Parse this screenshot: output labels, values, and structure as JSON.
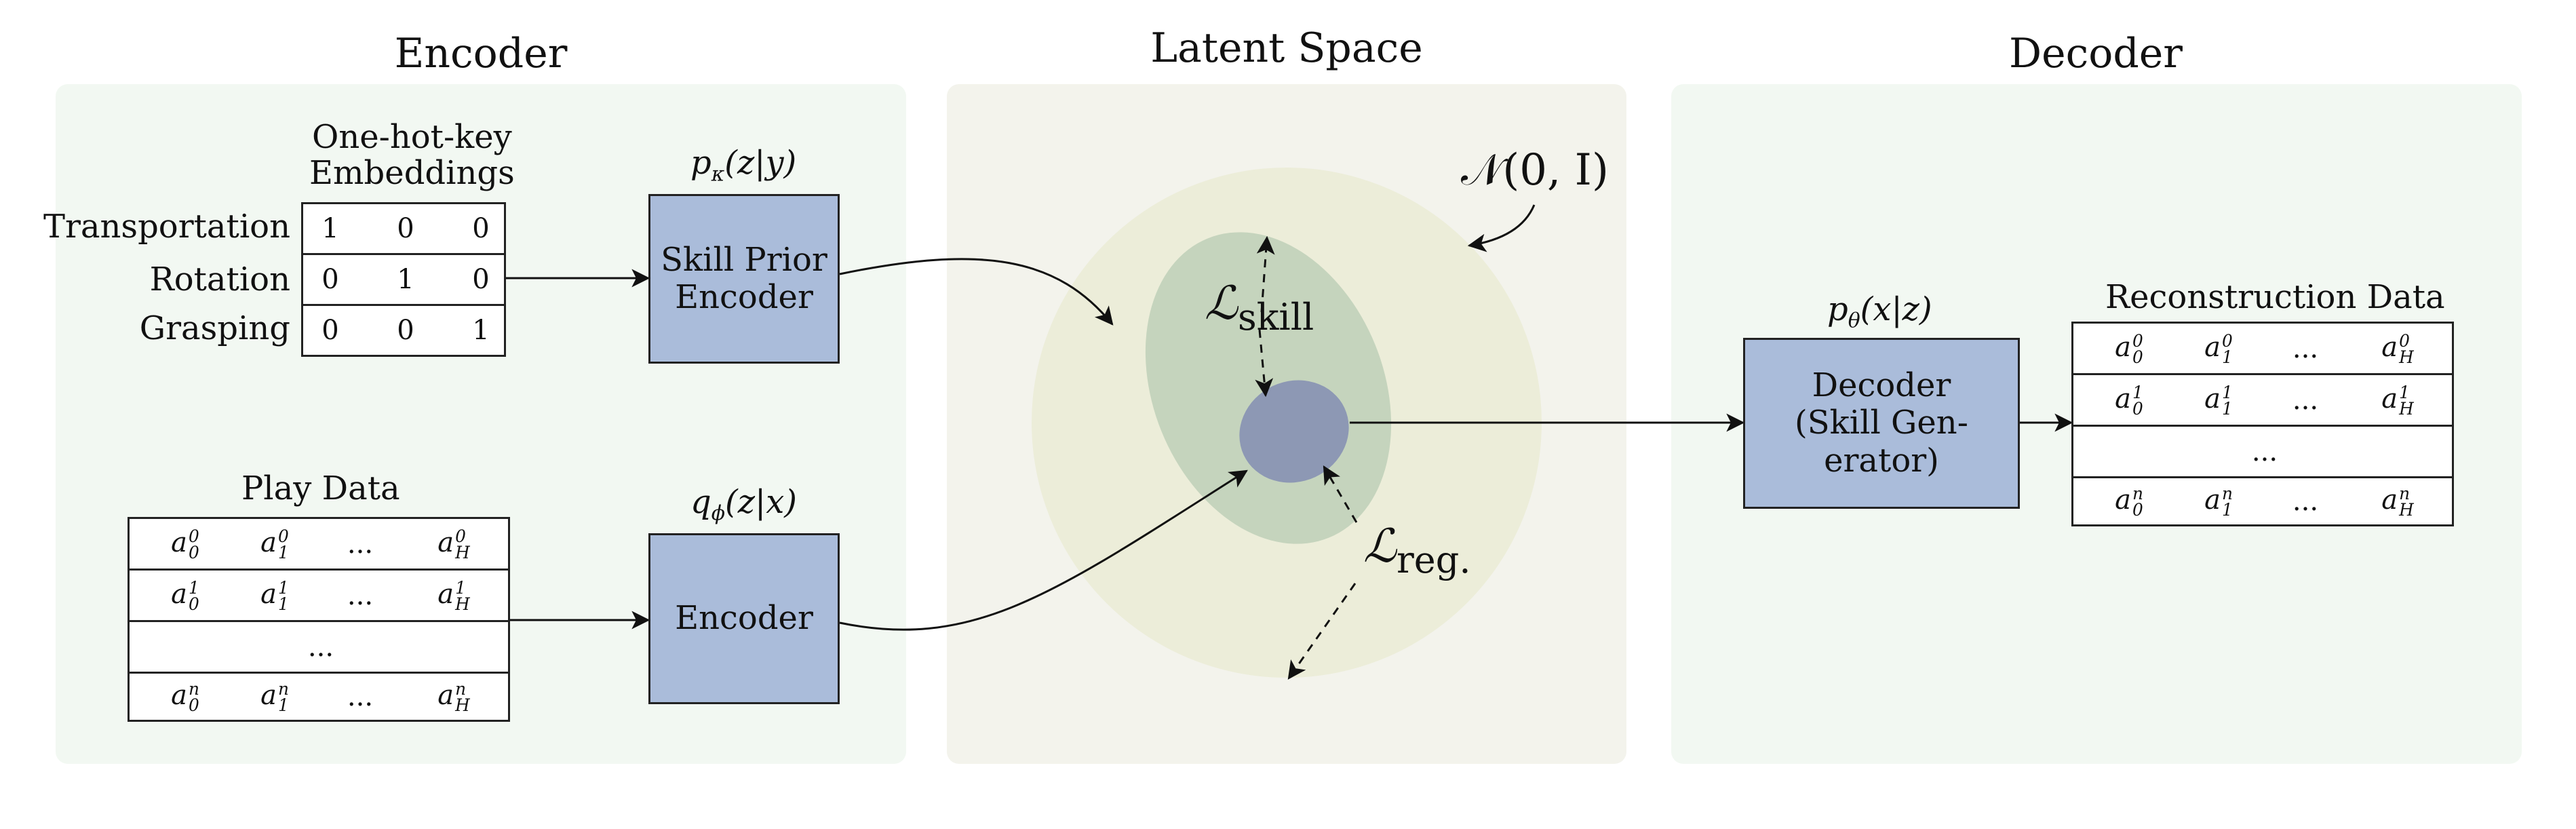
{
  "panels": {
    "encoder_title": "Encoder",
    "latent_title": "Latent Space",
    "decoder_title": "Decoder"
  },
  "encoder": {
    "embeddings_title_line1": "One-hot-key",
    "embeddings_title_line2": "Embeddings",
    "rows": [
      {
        "label": "Transportation",
        "values": [
          "1",
          "0",
          "0"
        ]
      },
      {
        "label": "Rotation",
        "values": [
          "0",
          "1",
          "0"
        ]
      },
      {
        "label": "Grasping",
        "values": [
          "0",
          "0",
          "1"
        ]
      }
    ],
    "prior_formula": "p",
    "prior_formula_sub": "κ",
    "prior_formula_rest": "(z|y)",
    "prior_box_line1": "Skill Prior",
    "prior_box_line2": "Encoder",
    "play_title": "Play Data",
    "encoder_formula": "q",
    "encoder_formula_sub": "ϕ",
    "encoder_formula_rest": "(z|x)",
    "encoder_box": "Encoder",
    "ellipsis": "..."
  },
  "latent": {
    "normal": "𝒩(0, I)",
    "skill_loss": "ℒ",
    "skill_loss_sub": "skill",
    "reg_loss": "ℒ",
    "reg_loss_sub": "reg."
  },
  "decoder": {
    "formula": "p",
    "formula_sub": "θ",
    "formula_rest": "(x|z)",
    "box_line1": "Decoder",
    "box_line2": "(Skill Gen-",
    "box_line3": "erator)",
    "recon_title": "Reconstruction Data",
    "ellipsis": "..."
  },
  "colors": {
    "panel_bg": "#f2f8f2",
    "latent_bg": "#f3f3ec",
    "outer_circle": "#ecedd9",
    "skill_ellipse": "#c5d4bd",
    "latent_point": "#8d98b4",
    "box_fill": "#aabcda"
  }
}
